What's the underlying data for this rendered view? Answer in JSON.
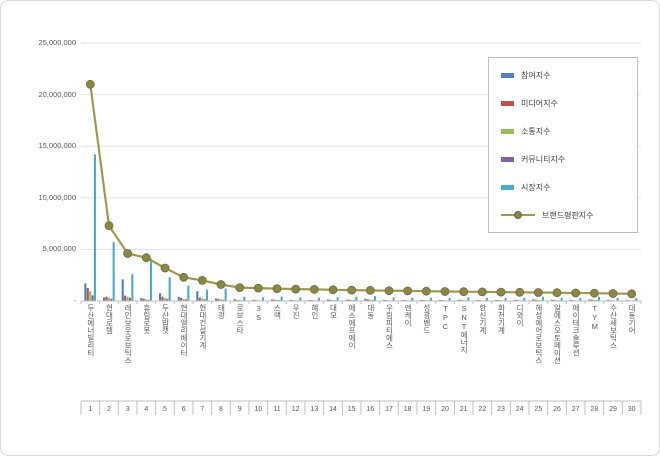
{
  "chart_data": {
    "type": "bar",
    "combo": "grouped bars with overlaid line",
    "title": "",
    "ylim": [
      0,
      25000000
    ],
    "ytick_interval": 5000000,
    "ytick_labels": [
      "-",
      "5,000,000",
      "10,000,000",
      "15,000,000",
      "20,000,000",
      "25,000,000"
    ],
    "grid": true,
    "legend_position": "top-right",
    "categories": [
      "두산에너빌리티",
      "현대로템",
      "레인보우로보틱스",
      "휴림로봇",
      "두산밥캣",
      "현대엘리베이터",
      "현대건설기계",
      "태광",
      "로보스타",
      "3S",
      "스맥",
      "우진",
      "혜인",
      "대모",
      "에스에프에이",
      "대동",
      "우림피티에스",
      "엔케이",
      "성광벤드",
      "TPC",
      "SNT에너지",
      "한신기계",
      "화천기계",
      "디와이",
      "해성에어로보틱스",
      "알에스오토메이션",
      "에이테크솔루션",
      "TYM",
      "수산세보틱스",
      "대동기어"
    ],
    "category_numbers": [
      "1",
      "2",
      "3",
      "4",
      "5",
      "6",
      "7",
      "8",
      "9",
      "10",
      "11",
      "12",
      "13",
      "14",
      "15",
      "16",
      "17",
      "18",
      "19",
      "20",
      "21",
      "22",
      "23",
      "24",
      "25",
      "26",
      "27",
      "28",
      "29",
      "30"
    ],
    "series": [
      {
        "name": "참여지수",
        "type": "bar",
        "color": "#4F81BD",
        "values": [
          1700000,
          350000,
          2100000,
          300000,
          750000,
          400000,
          950000,
          250000,
          180000,
          120000,
          160000,
          110000,
          100000,
          160000,
          120000,
          220000,
          110000,
          100000,
          110000,
          100000,
          120000,
          100000,
          100000,
          110000,
          170000,
          120000,
          110000,
          160000,
          110000,
          90000
        ]
      },
      {
        "name": "미디어지수",
        "type": "bar",
        "color": "#C0504D",
        "values": [
          1250000,
          420000,
          520000,
          210000,
          420000,
          310000,
          330000,
          210000,
          110000,
          90000,
          130000,
          90000,
          85000,
          110000,
          130000,
          160000,
          90000,
          85000,
          90000,
          85000,
          110000,
          85000,
          85000,
          90000,
          110000,
          90000,
          85000,
          130000,
          85000,
          70000
        ]
      },
      {
        "name": "소통지수",
        "type": "bar",
        "color": "#9BBB59",
        "values": [
          950000,
          320000,
          420000,
          160000,
          310000,
          210000,
          260000,
          160000,
          90000,
          70000,
          110000,
          70000,
          65000,
          90000,
          110000,
          130000,
          70000,
          65000,
          70000,
          65000,
          90000,
          65000,
          65000,
          70000,
          90000,
          70000,
          65000,
          110000,
          65000,
          55000
        ]
      },
      {
        "name": "커뮤니티지수",
        "type": "bar",
        "color": "#8064A2",
        "values": [
          550000,
          220000,
          310000,
          110000,
          210000,
          160000,
          160000,
          110000,
          70000,
          55000,
          85000,
          55000,
          50000,
          70000,
          85000,
          110000,
          55000,
          50000,
          55000,
          50000,
          65000,
          50000,
          50000,
          55000,
          70000,
          55000,
          50000,
          85000,
          50000,
          45000
        ]
      },
      {
        "name": "시장지수",
        "type": "bar",
        "color": "#4BACC6",
        "values": [
          14200000,
          5700000,
          2600000,
          4100000,
          2300000,
          1500000,
          1100000,
          1200000,
          420000,
          360000,
          420000,
          350000,
          320000,
          360000,
          420000,
          460000,
          350000,
          310000,
          310000,
          300000,
          360000,
          300000,
          300000,
          310000,
          420000,
          310000,
          300000,
          420000,
          300000,
          260000
        ]
      },
      {
        "name": "브랜드평판지수",
        "type": "line",
        "color": "#9D9A4F",
        "marker_color": "#8A8748",
        "marker_stroke": "#6E6B38",
        "values": [
          21000000,
          7300000,
          4600000,
          4200000,
          3200000,
          2300000,
          2000000,
          1600000,
          1300000,
          1250000,
          1200000,
          1150000,
          1120000,
          1090000,
          1060000,
          1030000,
          1000000,
          975000,
          950000,
          925000,
          900000,
          880000,
          860000,
          840000,
          820000,
          800000,
          780000,
          760000,
          730000,
          700000
        ]
      }
    ],
    "colors": {
      "gridline": "#e3e3e3",
      "axis": "#bfbfbf",
      "tick_text": "#595959",
      "legend_border": "#bfbfbf"
    }
  }
}
